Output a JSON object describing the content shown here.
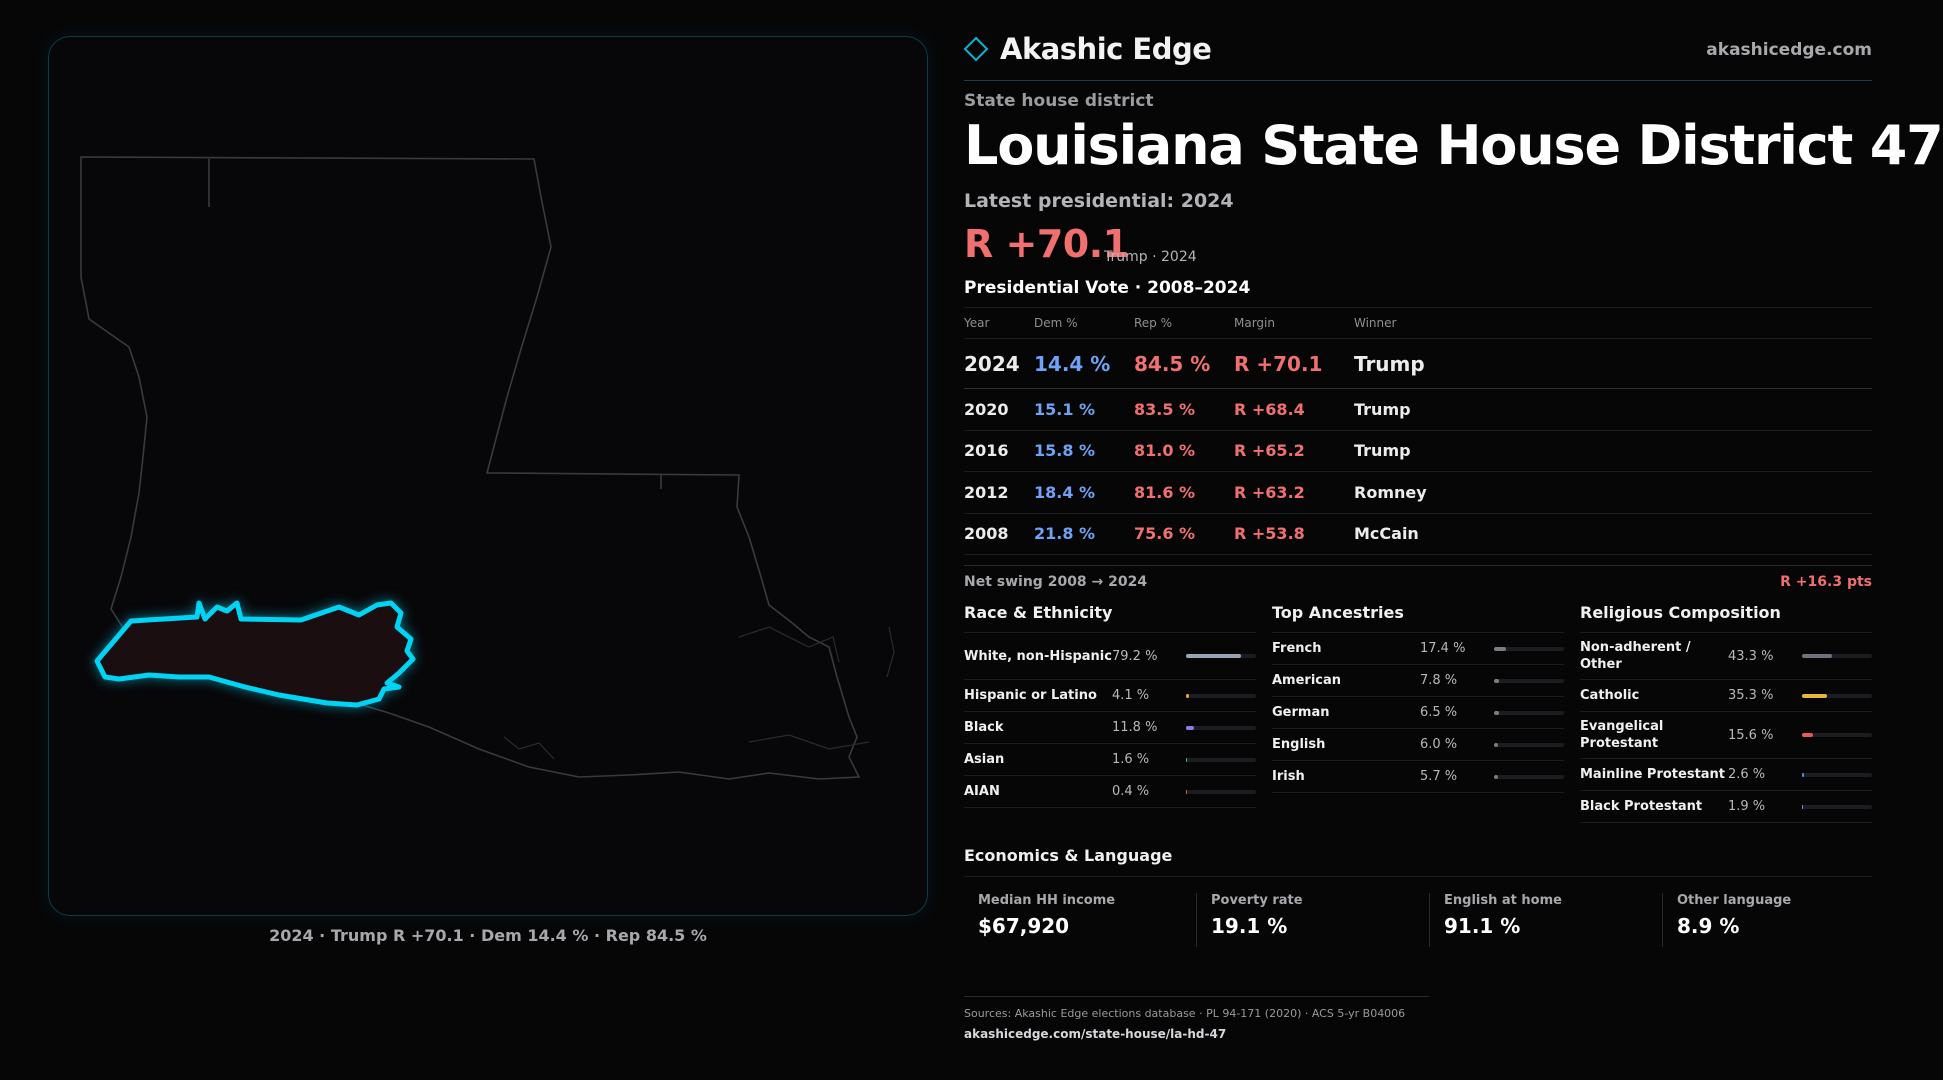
{
  "brand": {
    "name": "Akashic Edge",
    "url": "akashicedge.com"
  },
  "header": {
    "kicker": "State house district",
    "title": "Louisiana State House District 47",
    "latest_label": "Latest presidential: 2024",
    "big_margin": "R +70.1",
    "big_margin_sub": "Trump · 2024"
  },
  "map": {
    "caption": "2024 · Trump R +70.1 · Dem 14.4 % · Rep 84.5 %",
    "highlight_color": "#00d4f5"
  },
  "votes": {
    "title": "Presidential Vote · 2008–2024",
    "headers": {
      "year": "Year",
      "dem": "Dem %",
      "rep": "Rep %",
      "margin": "Margin",
      "winner": "Winner"
    },
    "rows": [
      {
        "year": "2024",
        "dem": "14.4 %",
        "rep": "84.5 %",
        "margin": "R +70.1",
        "winner": "Trump"
      },
      {
        "year": "2020",
        "dem": "15.1 %",
        "rep": "83.5 %",
        "margin": "R +68.4",
        "winner": "Trump"
      },
      {
        "year": "2016",
        "dem": "15.8 %",
        "rep": "81.0 %",
        "margin": "R +65.2",
        "winner": "Trump"
      },
      {
        "year": "2012",
        "dem": "18.4 %",
        "rep": "81.6 %",
        "margin": "R +63.2",
        "winner": "Romney"
      },
      {
        "year": "2008",
        "dem": "21.8 %",
        "rep": "75.6 %",
        "margin": "R +53.8",
        "winner": "McCain"
      }
    ],
    "swing_label": "Net swing 2008 → 2024",
    "swing_value": "R +16.3 pts"
  },
  "race": {
    "title": "Race & Ethnicity",
    "items": [
      {
        "label": "White, non-Hispanic",
        "value": "79.2 %",
        "pct": 79.2,
        "color": "#9aa4b4"
      },
      {
        "label": "Hispanic or Latino",
        "value": "4.1 %",
        "pct": 4.1,
        "color": "#e6a53a"
      },
      {
        "label": "Black",
        "value": "11.8 %",
        "pct": 11.8,
        "color": "#8a7ee6"
      },
      {
        "label": "Asian",
        "value": "1.6 %",
        "pct": 1.6,
        "color": "#3fbf8f"
      },
      {
        "label": "AIAN",
        "value": "0.4 %",
        "pct": 0.4,
        "color": "#c07050"
      }
    ]
  },
  "ancestry": {
    "title": "Top Ancestries",
    "items": [
      {
        "label": "French",
        "value": "17.4 %",
        "pct": 17.4,
        "color": "#7c7c84"
      },
      {
        "label": "American",
        "value": "7.8 %",
        "pct": 7.8,
        "color": "#7c7c84"
      },
      {
        "label": "German",
        "value": "6.5 %",
        "pct": 6.5,
        "color": "#7c7c84"
      },
      {
        "label": "English",
        "value": "6.0 %",
        "pct": 6.0,
        "color": "#7c7c84"
      },
      {
        "label": "Irish",
        "value": "5.7 %",
        "pct": 5.7,
        "color": "#7c7c84"
      }
    ]
  },
  "religion": {
    "title": "Religious Composition",
    "items": [
      {
        "label": "Non-adherent / Other",
        "value": "43.3 %",
        "pct": 43.3,
        "color": "#6f7480"
      },
      {
        "label": "Catholic",
        "value": "35.3 %",
        "pct": 35.3,
        "color": "#e6b73a"
      },
      {
        "label": "Evangelical Protestant",
        "value": "15.6 %",
        "pct": 15.6,
        "color": "#e65a5a"
      },
      {
        "label": "Mainline Protestant",
        "value": "2.6 %",
        "pct": 2.6,
        "color": "#5a8ae6"
      },
      {
        "label": "Black Protestant",
        "value": "1.9 %",
        "pct": 1.9,
        "color": "#9a7ee6"
      }
    ]
  },
  "economics": {
    "title": "Economics & Language",
    "stats": [
      {
        "label": "Median HH income",
        "value": "$67,920"
      },
      {
        "label": "Poverty rate",
        "value": "19.1 %"
      },
      {
        "label": "English at home",
        "value": "91.1 %"
      },
      {
        "label": "Other language",
        "value": "8.9 %"
      }
    ]
  },
  "sources": {
    "text": "Sources: Akashic Edge elections database · PL 94-171 (2020) · ACS 5-yr B04006",
    "url": "akashicedge.com/state-house/la-hd-47"
  }
}
